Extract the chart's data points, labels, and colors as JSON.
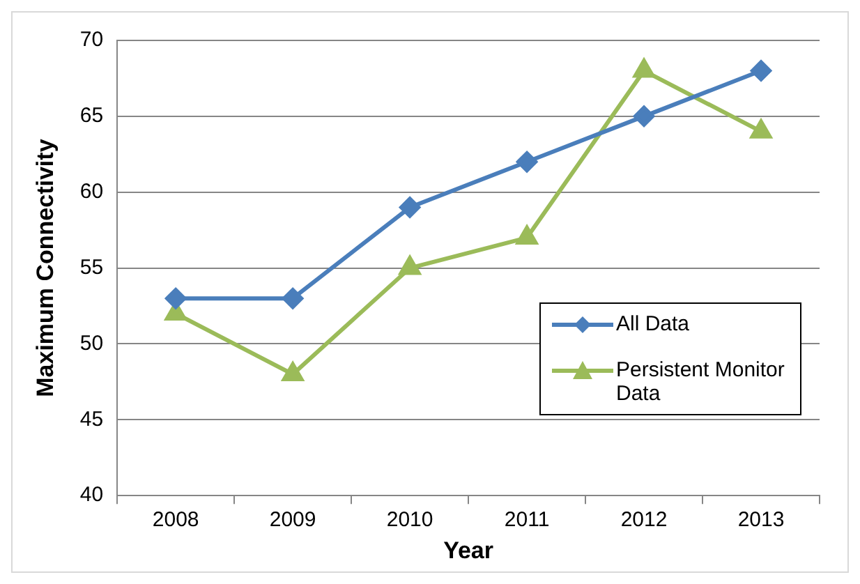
{
  "chart_data": {
    "type": "line",
    "xlabel": "Year",
    "ylabel": "Maximum Connectivity",
    "categories": [
      "2008",
      "2009",
      "2010",
      "2011",
      "2012",
      "2013"
    ],
    "series": [
      {
        "name": "All Data",
        "color": "#4a7ebb",
        "marker": "diamond",
        "values": [
          53,
          53,
          59,
          62,
          65,
          68
        ]
      },
      {
        "name": "Persistent Monitor Data",
        "color": "#9bbb59",
        "marker": "triangle",
        "values": [
          52,
          48,
          55,
          57,
          68,
          64
        ]
      }
    ],
    "ylim": [
      40,
      70
    ],
    "yticks": [
      40,
      45,
      50,
      55,
      60,
      65,
      70
    ],
    "grid": "y",
    "legend": "bottom right",
    "line_style": "solid"
  }
}
